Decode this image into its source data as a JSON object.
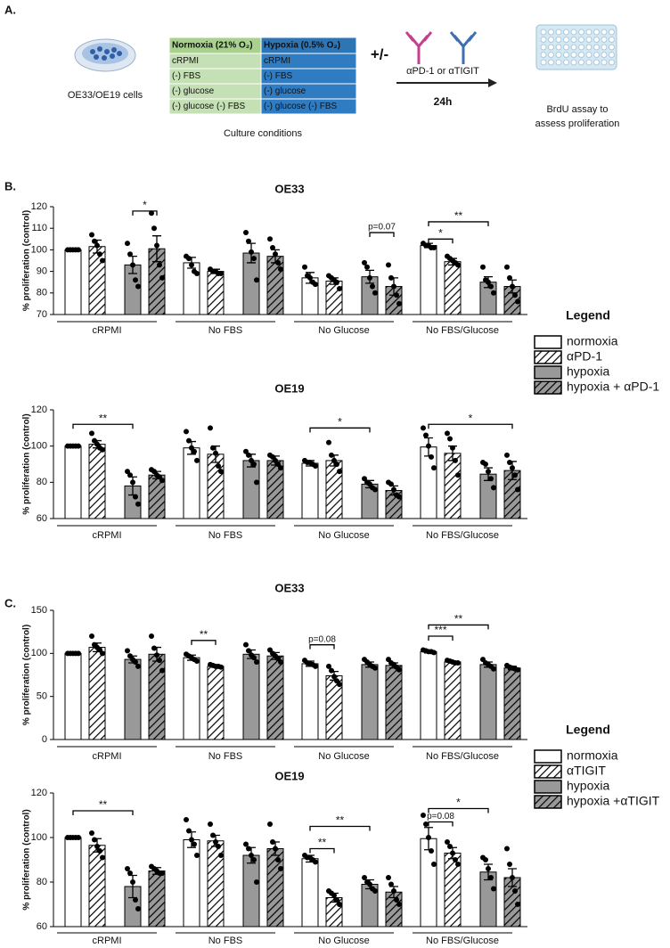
{
  "panel_a": {
    "label": "A.",
    "cells_label": "OE33/OE19 cells",
    "table": {
      "header": [
        "Normoxia (21% O₂)",
        "Hypoxia (0.5% O₂)"
      ],
      "rows": [
        [
          "cRPMI",
          "cRPMI"
        ],
        [
          "(-) FBS",
          "(-) FBS"
        ],
        [
          "(-) glucose",
          "(-) glucose"
        ],
        [
          "(-) glucose (-) FBS",
          "(-) glucose (-) FBS"
        ]
      ]
    },
    "caption": "Culture conditions",
    "plus_minus": "+/-",
    "antibodies": "αPD-1 or αTIGIT",
    "duration": "24h",
    "assay": [
      "BrdU assay to",
      "assess proliferation"
    ]
  },
  "panels": {
    "b": "B.",
    "c": "C."
  },
  "chart_data": [
    {
      "type": "bar",
      "title": "OE33",
      "ylabel": "% proliferation (control)",
      "ylim": [
        70,
        120
      ],
      "yticks": [
        70,
        80,
        90,
        100,
        110,
        120
      ],
      "categories": [
        "cRPMI",
        "No FBS",
        "No Glucose",
        "No FBS/Glucose"
      ],
      "legend_title": "Legend",
      "series": [
        {
          "name": "normoxia",
          "color": "#ffffff",
          "hatched": false,
          "values": [
            100,
            94,
            87,
            102
          ],
          "errors": [
            0.3,
            2.5,
            2.5,
            1
          ],
          "points": [
            [
              100,
              100,
              100,
              100,
              100
            ],
            [
              97,
              96,
              93,
              90,
              89
            ],
            [
              92,
              88,
              87,
              85,
              84
            ],
            [
              103,
              102,
              102,
              101,
              101
            ]
          ]
        },
        {
          "name": "αPD-1",
          "color": "#ffffff",
          "hatched": true,
          "values": [
            101.5,
            90,
            85.5,
            94.5
          ],
          "errors": [
            3,
            1,
            1.5,
            1.5
          ],
          "points": [
            [
              107,
              104,
              102,
              98,
              95
            ],
            [
              91,
              90,
              90,
              89,
              89
            ],
            [
              88,
              87,
              86,
              85,
              82
            ],
            [
              97,
              96,
              95,
              94,
              93
            ]
          ]
        },
        {
          "name": "hypoxia",
          "color": "#999999",
          "hatched": false,
          "values": [
            93,
            98.5,
            87.5,
            85
          ],
          "errors": [
            4,
            4.5,
            3,
            2.5
          ],
          "points": [
            [
              103,
              98,
              93,
              86,
              83
            ],
            [
              108,
              104,
              99,
              96,
              86
            ],
            [
              94,
              92,
              87,
              83,
              80
            ],
            [
              92,
              86,
              85,
              83,
              80
            ]
          ]
        },
        {
          "name": "hypoxia + αPD-1",
          "color": "#999999",
          "hatched": true,
          "values": [
            100.5,
            97,
            83,
            83
          ],
          "errors": [
            6,
            3,
            4,
            3
          ],
          "points": [
            [
              117,
              110,
              102,
              93,
              87
            ],
            [
              105,
              101,
              98,
              94,
              91
            ],
            [
              93,
              87,
              83,
              79,
              75
            ],
            [
              92,
              87,
              83,
              79,
              76
            ]
          ]
        }
      ],
      "annotations": [
        {
          "text": "*",
          "group": 0,
          "bars": [
            2,
            3
          ],
          "y": 118
        },
        {
          "text": "p=0.07",
          "group": 2,
          "bars": [
            2,
            3
          ],
          "y": 108
        },
        {
          "text": "*",
          "group": 3,
          "bars": [
            0,
            1
          ],
          "y": 105
        },
        {
          "text": "**",
          "group": 3,
          "bars": [
            0,
            2
          ],
          "y": 113
        }
      ]
    },
    {
      "type": "bar",
      "title": "OE19",
      "ylabel": "% proliferation (control)",
      "ylim": [
        60,
        120
      ],
      "yticks": [
        60,
        80,
        100,
        120
      ],
      "categories": [
        "cRPMI",
        "No FBS",
        "No Glucose",
        "No FBS/Glucose"
      ],
      "series": [
        {
          "color": "#ffffff",
          "hatched": false,
          "values": [
            100,
            99,
            90.5,
            99.5
          ],
          "errors": [
            0.3,
            3.5,
            1.5,
            5
          ],
          "points": [
            [
              100,
              100,
              100,
              100,
              100
            ],
            [
              108,
              103,
              99,
              97,
              92
            ],
            [
              92,
              91,
              91,
              90,
              89
            ],
            [
              110,
              106,
              100,
              94,
              88
            ]
          ]
        },
        {
          "color": "#ffffff",
          "hatched": true,
          "values": [
            101,
            95.5,
            92,
            96
          ],
          "errors": [
            2,
            4.5,
            3,
            4
          ],
          "points": [
            [
              107,
              103,
              101,
              99,
              98
            ],
            [
              110,
              99,
              96,
              89,
              86
            ],
            [
              102,
              95,
              92,
              90,
              86
            ],
            [
              107,
              104,
              99,
              92,
              84
            ]
          ]
        },
        {
          "color": "#999999",
          "hatched": false,
          "values": [
            78,
            92,
            79,
            84.5
          ],
          "errors": [
            5,
            3.5,
            2,
            3.5
          ],
          "points": [
            [
              86,
              84,
              80,
              72,
              68
            ],
            [
              97,
              95,
              92,
              90,
              80
            ],
            [
              82,
              80,
              79,
              77,
              76
            ],
            [
              91,
              90,
              86,
              82,
              77
            ]
          ]
        },
        {
          "color": "#999999",
          "hatched": true,
          "values": [
            84,
            92,
            75.5,
            86.5
          ],
          "errors": [
            2,
            2.5,
            2.5,
            5
          ],
          "points": [
            [
              87,
              86,
              84,
              83,
              81
            ],
            [
              95,
              94,
              92,
              90,
              88
            ],
            [
              80,
              79,
              76,
              73,
              72
            ],
            [
              95,
              91,
              88,
              84,
              76
            ]
          ]
        }
      ],
      "annotations": [
        {
          "text": "**",
          "group": 0,
          "bars": [
            0,
            2
          ],
          "y": 112
        },
        {
          "text": "*",
          "group": 2,
          "bars": [
            0,
            2
          ],
          "y": 110
        },
        {
          "text": "*",
          "group": 3,
          "bars": [
            0,
            3
          ],
          "y": 112
        }
      ]
    },
    {
      "type": "bar",
      "title": "OE33",
      "ylabel": "% proliferation (control)",
      "ylim": [
        0,
        150
      ],
      "yticks": [
        0,
        50,
        100,
        150
      ],
      "categories": [
        "cRPMI",
        "No FBS",
        "No Glucose",
        "No FBS/Glucose"
      ],
      "legend_title": "Legend",
      "series": [
        {
          "name": "normoxia",
          "color": "#ffffff",
          "hatched": false,
          "values": [
            100,
            95,
            88,
            102
          ],
          "errors": [
            0.5,
            3,
            3,
            1.5
          ],
          "points": [
            [
              100,
              100,
              100,
              100,
              100
            ],
            [
              99,
              97,
              95,
              93,
              91
            ],
            [
              92,
              89,
              88,
              87,
              85
            ],
            [
              104,
              103,
              102,
              102,
              101
            ]
          ]
        },
        {
          "name": "αTIGIT",
          "color": "#ffffff",
          "hatched": true,
          "values": [
            107,
            85,
            74,
            90
          ],
          "errors": [
            5,
            1,
            5,
            1
          ],
          "points": [
            [
              120,
              110,
              107,
              104,
              100
            ],
            [
              87,
              86,
              85,
              85,
              84
            ],
            [
              85,
              80,
              73,
              68,
              64
            ],
            [
              92,
              91,
              90,
              89,
              89
            ]
          ]
        },
        {
          "name": "hypoxia",
          "color": "#999999",
          "hatched": false,
          "values": [
            93,
            99,
            87,
            87
          ],
          "errors": [
            4,
            5,
            3,
            3
          ],
          "points": [
            [
              103,
              97,
              93,
              90,
              85
            ],
            [
              110,
              103,
              98,
              95,
              90
            ],
            [
              93,
              90,
              87,
              85,
              83
            ],
            [
              93,
              89,
              87,
              85,
              82
            ]
          ]
        },
        {
          "name": "hypoxia +αTIGIT",
          "color": "#999999",
          "hatched": true,
          "values": [
            99,
            97,
            86,
            83
          ],
          "errors": [
            8,
            4,
            3,
            2
          ],
          "points": [
            [
              120,
              106,
              98,
              92,
              80
            ],
            [
              104,
              100,
              97,
              94,
              90
            ],
            [
              93,
              89,
              87,
              84,
              81
            ],
            [
              86,
              84,
              83,
              82,
              81
            ]
          ]
        }
      ],
      "annotations": [
        {
          "text": "**",
          "group": 1,
          "bars": [
            0,
            1
          ],
          "y": 115
        },
        {
          "text": "p=0.08",
          "group": 2,
          "bars": [
            0,
            1
          ],
          "y": 110
        },
        {
          "text": "***",
          "group": 3,
          "bars": [
            0,
            1
          ],
          "y": 120
        },
        {
          "text": "**",
          "group": 3,
          "bars": [
            0,
            2
          ],
          "y": 133
        }
      ]
    },
    {
      "type": "bar",
      "title": "OE19",
      "ylabel": "% proliferation (control)",
      "ylim": [
        60,
        120
      ],
      "yticks": [
        60,
        80,
        100,
        120
      ],
      "categories": [
        "cRPMI",
        "No FBS",
        "No Glucose",
        "No FBS/Glucose"
      ],
      "series": [
        {
          "color": "#ffffff",
          "hatched": false,
          "values": [
            100,
            99,
            90.5,
            99.5
          ],
          "errors": [
            0.3,
            3.5,
            1.5,
            5
          ],
          "points": [
            [
              100,
              100,
              100,
              100,
              100
            ],
            [
              108,
              103,
              99,
              97,
              92
            ],
            [
              92,
              91,
              91,
              90,
              89
            ],
            [
              110,
              106,
              100,
              94,
              88
            ]
          ]
        },
        {
          "color": "#ffffff",
          "hatched": true,
          "values": [
            96.5,
            98.5,
            73,
            93
          ],
          "errors": [
            3,
            2.5,
            2,
            2.5
          ],
          "points": [
            [
              102,
              99,
              96,
              94,
              91
            ],
            [
              106,
              101,
              98,
              96,
              92
            ],
            [
              76,
              75,
              74,
              72,
              70
            ],
            [
              98,
              96,
              93,
              90,
              88
            ]
          ]
        },
        {
          "color": "#999999",
          "hatched": false,
          "values": [
            78,
            92,
            79,
            84.5
          ],
          "errors": [
            5,
            3.5,
            2,
            3.5
          ],
          "points": [
            [
              86,
              84,
              80,
              72,
              68
            ],
            [
              97,
              95,
              92,
              90,
              80
            ],
            [
              82,
              80,
              79,
              77,
              76
            ],
            [
              91,
              90,
              86,
              82,
              77
            ]
          ]
        },
        {
          "color": "#999999",
          "hatched": true,
          "values": [
            85,
            95,
            75.5,
            82
          ],
          "errors": [
            1.5,
            3,
            2.5,
            4
          ],
          "points": [
            [
              87,
              86,
              85,
              84,
              84
            ],
            [
              106,
              98,
              95,
              90,
              86
            ],
            [
              82,
              79,
              76,
              72,
              70
            ],
            [
              95,
              88,
              82,
              76,
              70
            ]
          ]
        }
      ],
      "annotations": [
        {
          "text": "**",
          "group": 0,
          "bars": [
            0,
            2
          ],
          "y": 112
        },
        {
          "text": "**",
          "group": 2,
          "bars": [
            0,
            1
          ],
          "y": 95
        },
        {
          "text": "**",
          "group": 2,
          "bars": [
            0,
            2
          ],
          "y": 105
        },
        {
          "text": "p=0.08",
          "group": 3,
          "bars": [
            0,
            1
          ],
          "y": 107
        },
        {
          "text": "*",
          "group": 3,
          "bars": [
            0,
            2
          ],
          "y": 113
        }
      ]
    }
  ]
}
